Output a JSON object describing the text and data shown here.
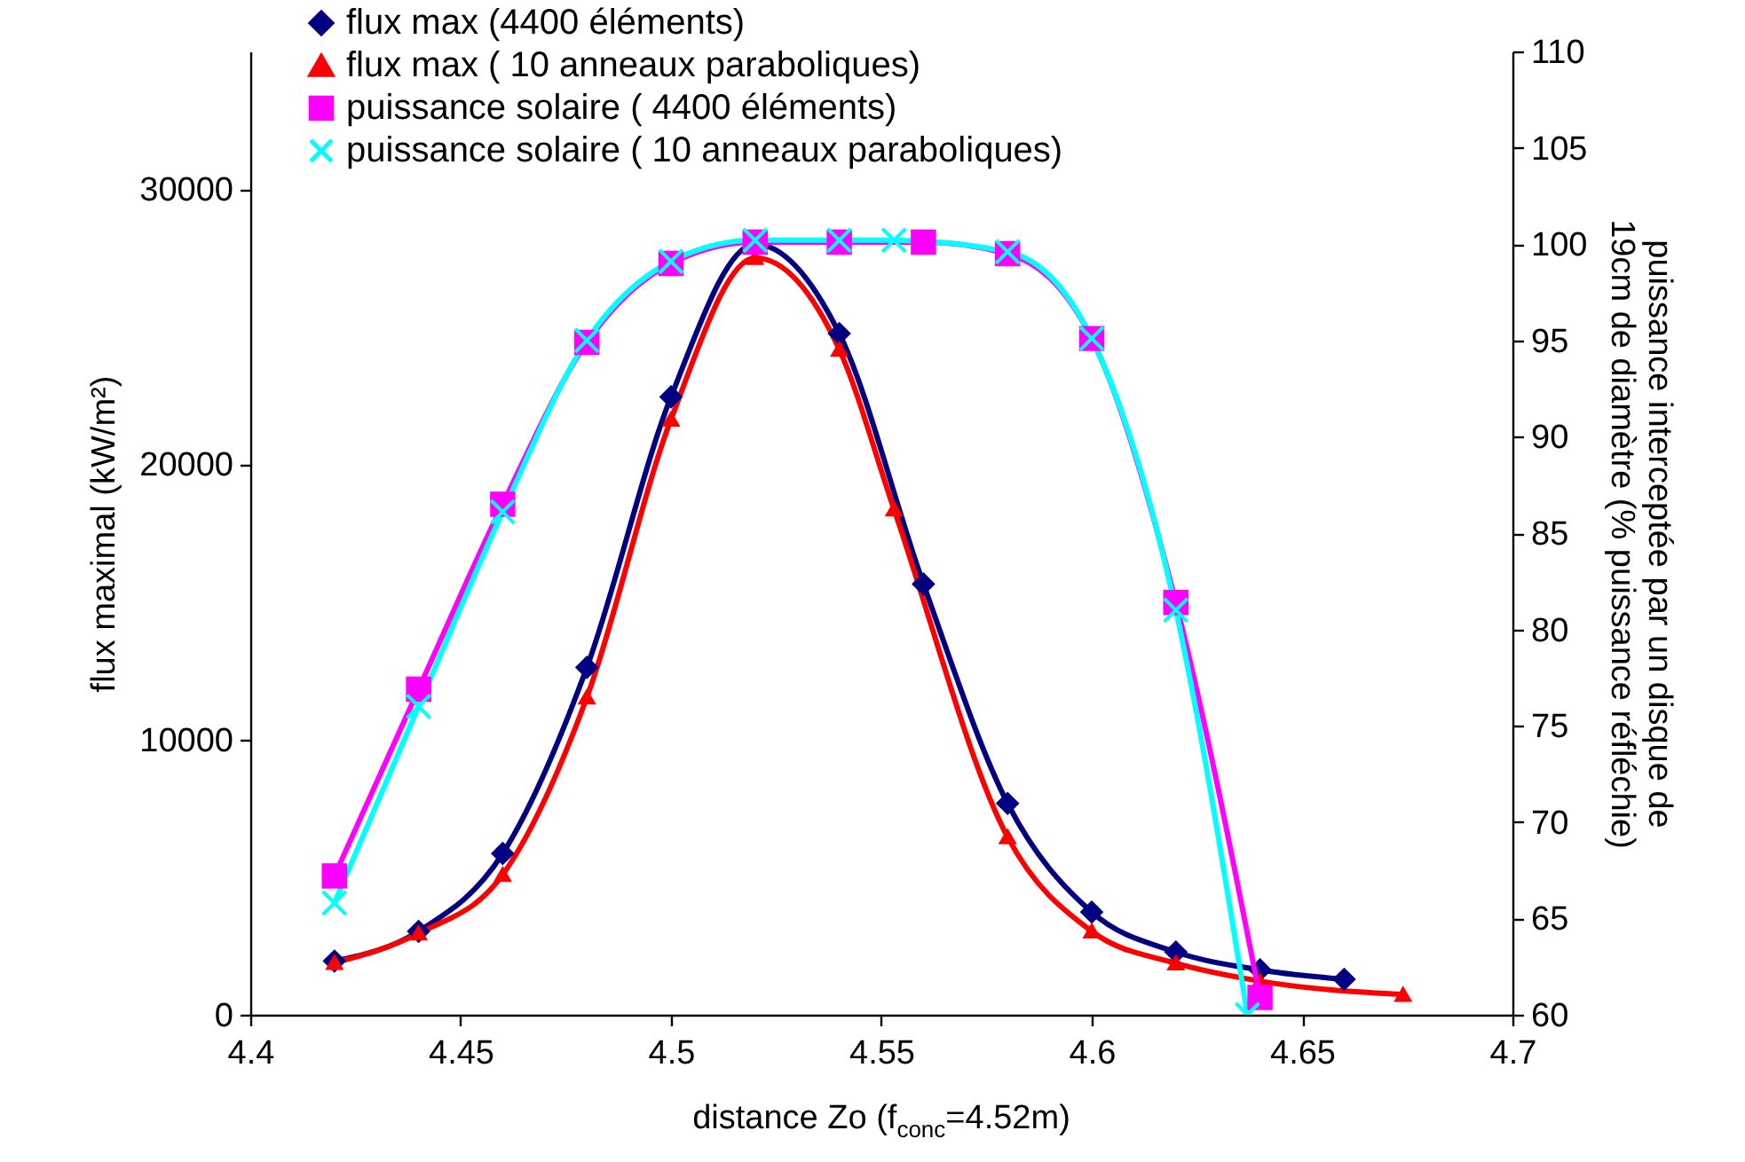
{
  "chart_data": {
    "type": "line",
    "xlabel": "distance Zo (f$_{conc}$=4.52m)",
    "ylabel": "flux maximal (kW/m²)",
    "y2label": "puissance interceptée par un disque de\n19cm de diamètre (% puissance réfléchie)",
    "xlim": [
      4.4,
      4.7
    ],
    "xticks": [
      4.4,
      4.45,
      4.5,
      4.55,
      4.6,
      4.65,
      4.7
    ],
    "ylim": [
      0,
      35000
    ],
    "yticks": [
      0,
      10000,
      20000,
      30000
    ],
    "y2lim": [
      60,
      110
    ],
    "y2ticks": [
      60,
      65,
      70,
      75,
      80,
      85,
      90,
      95,
      100,
      105,
      110
    ],
    "legend": "top left",
    "line_style": "solid",
    "series": [
      {
        "name": "flux max (4400 éléments)",
        "color": "#000080",
        "marker": "diamond",
        "x": [
          4.42,
          4.44,
          4.46,
          4.48,
          4.5,
          4.52,
          4.54,
          4.56,
          4.58,
          4.6,
          4.62,
          4.64,
          4.66
        ],
        "values": [
          1950,
          3030,
          5860,
          12620,
          22450,
          28000,
          24750,
          15650,
          7680,
          3730,
          2280,
          1630,
          1290
        ]
      },
      {
        "name": "flux max ( 10 anneaux paraboliques)",
        "color": "#ff0000",
        "marker": "triangle",
        "x": [
          4.42,
          4.44,
          4.46,
          4.48,
          4.5,
          4.52,
          4.54,
          4.553,
          4.58,
          4.6,
          4.62,
          4.64,
          4.674
        ],
        "values": [
          1890,
          2960,
          5090,
          11530,
          21630,
          27500,
          24170,
          18370,
          6460,
          3030,
          1870,
          1220,
          730
        ]
      },
      {
        "name": "puissance solaire ( 4400 éléments)",
        "color": "#ff00ff",
        "marker": "square",
        "axis": "y2",
        "x": [
          4.42,
          4.44,
          4.46,
          4.48,
          4.5,
          4.52,
          4.54,
          4.56,
          4.58,
          4.6,
          4.62,
          4.64
        ],
        "values": [
          67.2,
          76.9,
          86.5,
          94.9,
          99.0,
          100.1,
          100.1,
          100.1,
          99.5,
          95.1,
          81.4,
          60.9
        ]
      },
      {
        "name": "puissance solaire ( 10 anneaux paraboliques)",
        "color": "#00ffff",
        "marker": "cross",
        "axis": "y2",
        "x": [
          4.42,
          4.44,
          4.46,
          4.48,
          4.5,
          4.52,
          4.54,
          4.553,
          4.58,
          4.6,
          4.62,
          4.637
        ],
        "values": [
          65.8,
          76.0,
          86.1,
          95.0,
          99.1,
          100.2,
          100.2,
          100.2,
          99.6,
          95.1,
          81.0,
          60.0
        ]
      }
    ]
  }
}
